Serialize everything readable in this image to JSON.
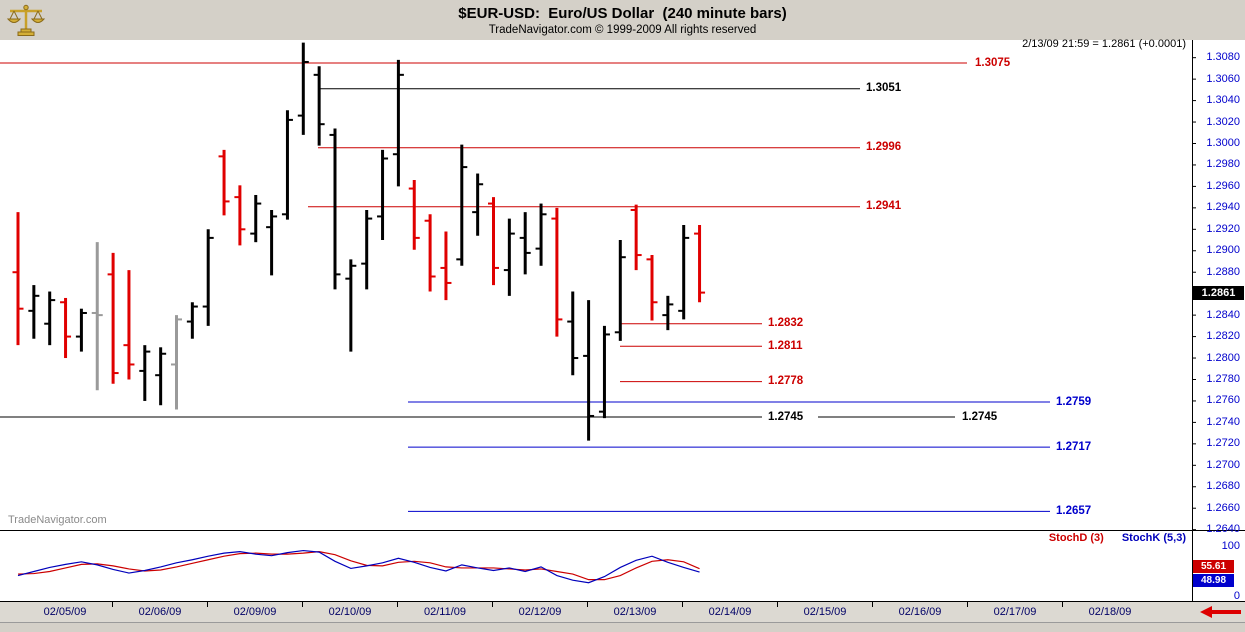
{
  "header": {
    "title": "$EUR-USD:  Euro/US Dollar  (240 minute bars)",
    "subtitle": "TradeNavigator.com © 1999-2009 All rights reserved"
  },
  "quote_info": "2/13/09 21:59 = 1.2861 (+0.0001)",
  "watermark": "TradeNavigator.com",
  "colors": {
    "bar": {
      "black": "#000000",
      "red": "#e00000",
      "gray": "#9a9a9a"
    },
    "level": {
      "red": "#cc0000",
      "blue": "#0000cc",
      "black": "#000000"
    },
    "axis_text": "#0000cc",
    "date_text": "#000066",
    "stoch_d": "#cc0000",
    "stoch_k": "#0000bb",
    "current_bg": "#000000",
    "current_text": "#ffffff",
    "accent_red": "#dd0000"
  },
  "chart_data": {
    "type": "ohlc-bar",
    "title": "$EUR-USD Euro/US Dollar (240 minute bars)",
    "x_axis": {
      "dates": [
        "02/05/09",
        "02/06/09",
        "02/09/09",
        "02/10/09",
        "02/11/09",
        "02/12/09",
        "02/13/09",
        "02/14/09",
        "02/15/09",
        "02/16/09",
        "02/17/09",
        "02/18/09"
      ]
    },
    "y_axis": {
      "ticks": [
        "1.3080",
        "1.3060",
        "1.3040",
        "1.3020",
        "1.3000",
        "1.2980",
        "1.2960",
        "1.2940",
        "1.2920",
        "1.2900",
        "1.2880",
        "1.2840",
        "1.2820",
        "1.2800",
        "1.2780",
        "1.2760",
        "1.2740",
        "1.2720",
        "1.2700",
        "1.2680",
        "1.2660",
        "1.2640"
      ],
      "range": [
        1.264,
        1.308
      ],
      "current_price": "1.2861"
    },
    "bar_format": [
      "open",
      "high",
      "low",
      "close",
      "color"
    ],
    "bars": [
      [
        1.288,
        1.2936,
        1.2812,
        1.2846,
        "red"
      ],
      [
        1.2844,
        1.2868,
        1.2818,
        1.2858,
        "black"
      ],
      [
        1.2832,
        1.2862,
        1.2812,
        1.2854,
        "black"
      ],
      [
        1.2852,
        1.2856,
        1.28,
        1.282,
        "red"
      ],
      [
        1.282,
        1.2846,
        1.2806,
        1.2842,
        "black"
      ],
      [
        1.2842,
        1.2908,
        1.277,
        1.284,
        "gray"
      ],
      [
        1.2878,
        1.2898,
        1.2776,
        1.2786,
        "red"
      ],
      [
        1.2812,
        1.2882,
        1.278,
        1.2794,
        "red"
      ],
      [
        1.2788,
        1.2812,
        1.276,
        1.2806,
        "black"
      ],
      [
        1.2784,
        1.281,
        1.2756,
        1.2804,
        "black"
      ],
      [
        1.2794,
        1.284,
        1.2752,
        1.2836,
        "gray"
      ],
      [
        1.2834,
        1.2852,
        1.2818,
        1.2848,
        "black"
      ],
      [
        1.2848,
        1.292,
        1.283,
        1.2912,
        "black"
      ],
      [
        1.2988,
        1.2994,
        1.2933,
        1.2946,
        "red"
      ],
      [
        1.295,
        1.2961,
        1.2905,
        1.292,
        "red"
      ],
      [
        1.2916,
        1.2952,
        1.2908,
        1.2944,
        "black"
      ],
      [
        1.2922,
        1.2938,
        1.2877,
        1.2932,
        "black"
      ],
      [
        1.2934,
        1.3031,
        1.2929,
        1.3022,
        "black"
      ],
      [
        1.3026,
        1.3094,
        1.3008,
        1.3076,
        "black"
      ],
      [
        1.3064,
        1.3072,
        1.2998,
        1.3018,
        "black"
      ],
      [
        1.3008,
        1.3014,
        1.2864,
        1.2878,
        "black"
      ],
      [
        1.2874,
        1.2892,
        1.2806,
        1.2886,
        "black"
      ],
      [
        1.2888,
        1.2938,
        1.2864,
        1.293,
        "black"
      ],
      [
        1.2932,
        1.2994,
        1.291,
        1.2986,
        "black"
      ],
      [
        1.299,
        1.3078,
        1.296,
        1.3064,
        "black"
      ],
      [
        1.2958,
        1.2966,
        1.2901,
        1.2912,
        "red"
      ],
      [
        1.2928,
        1.2934,
        1.2862,
        1.2876,
        "red"
      ],
      [
        1.2884,
        1.2918,
        1.2854,
        1.287,
        "red"
      ],
      [
        1.2892,
        1.2999,
        1.2886,
        1.2978,
        "black"
      ],
      [
        1.2936,
        1.2972,
        1.2914,
        1.2962,
        "black"
      ],
      [
        1.2944,
        1.295,
        1.2868,
        1.2884,
        "red"
      ],
      [
        1.2882,
        1.293,
        1.2858,
        1.2916,
        "black"
      ],
      [
        1.2912,
        1.2936,
        1.2878,
        1.2898,
        "black"
      ],
      [
        1.2902,
        1.2944,
        1.2886,
        1.2934,
        "black"
      ],
      [
        1.293,
        1.294,
        1.282,
        1.2836,
        "red"
      ],
      [
        1.2834,
        1.2862,
        1.2784,
        1.28,
        "black"
      ],
      [
        1.2802,
        1.2854,
        1.2723,
        1.2746,
        "black"
      ],
      [
        1.275,
        1.283,
        1.2744,
        1.2822,
        "black"
      ],
      [
        1.2824,
        1.291,
        1.2816,
        1.2894,
        "black"
      ],
      [
        1.2938,
        1.2943,
        1.2882,
        1.2896,
        "red"
      ],
      [
        1.2892,
        1.2896,
        1.2835,
        1.2852,
        "red"
      ],
      [
        1.284,
        1.2858,
        1.2826,
        1.285,
        "black"
      ],
      [
        1.2844,
        1.2924,
        1.2836,
        1.2912,
        "black"
      ],
      [
        1.2916,
        1.2924,
        1.2852,
        1.2861,
        "red"
      ]
    ],
    "levels": [
      {
        "label": "1.3075",
        "price": 1.3075,
        "color": "red",
        "segments": [
          [
            0,
            967
          ]
        ],
        "label_positions": [
          975
        ]
      },
      {
        "label": "1.3051",
        "price": 1.3051,
        "color": "black",
        "segments": [
          [
            318,
            860
          ]
        ],
        "label_positions": [
          866
        ]
      },
      {
        "label": "1.2996",
        "price": 1.2996,
        "color": "red",
        "segments": [
          [
            318,
            860
          ]
        ],
        "label_positions": [
          866
        ]
      },
      {
        "label": "1.2941",
        "price": 1.2941,
        "color": "red",
        "segments": [
          [
            308,
            860
          ]
        ],
        "label_positions": [
          866
        ]
      },
      {
        "label": "1.2832",
        "price": 1.2832,
        "color": "red",
        "segments": [
          [
            620,
            762
          ]
        ],
        "label_positions": [
          768
        ]
      },
      {
        "label": "1.2811",
        "price": 1.2811,
        "color": "red",
        "segments": [
          [
            620,
            762
          ]
        ],
        "label_positions": [
          768
        ]
      },
      {
        "label": "1.2778",
        "price": 1.2778,
        "color": "red",
        "segments": [
          [
            620,
            762
          ]
        ],
        "label_positions": [
          768
        ]
      },
      {
        "label": "1.2759",
        "price": 1.2759,
        "color": "blue",
        "segments": [
          [
            408,
            1050
          ]
        ],
        "label_positions": [
          1056
        ]
      },
      {
        "label": "1.2745",
        "price": 1.2745,
        "color": "black",
        "segments": [
          [
            0,
            762
          ],
          [
            818,
            955
          ]
        ],
        "label_positions": [
          768,
          962
        ]
      },
      {
        "label": "1.2717",
        "price": 1.2717,
        "color": "blue",
        "segments": [
          [
            408,
            1050
          ]
        ],
        "label_positions": [
          1056
        ]
      },
      {
        "label": "1.2657",
        "price": 1.2657,
        "color": "blue",
        "segments": [
          [
            408,
            1050
          ]
        ],
        "label_positions": [
          1056
        ]
      }
    ],
    "stoch": {
      "legend_d": "StochD (3)",
      "legend_k": "StochK (5,3)",
      "axis_top": "100",
      "axis_bottom": "0",
      "d_last": "55.61",
      "k_last": "48.98",
      "range": [
        0,
        100
      ],
      "d_values": [
        45,
        46,
        50,
        57,
        64,
        65,
        61,
        55,
        51,
        53,
        59,
        66,
        73,
        80,
        85,
        86,
        84,
        84,
        86,
        89,
        83,
        71,
        62,
        61,
        68,
        70,
        67,
        59,
        57,
        57,
        57,
        55,
        53,
        55,
        50,
        45,
        34,
        34,
        42,
        57,
        70,
        73,
        69,
        55.61
      ],
      "k_values": [
        42,
        50,
        58,
        64,
        69,
        63,
        54,
        47,
        52,
        59,
        67,
        73,
        80,
        86,
        89,
        84,
        81,
        87,
        91,
        88,
        70,
        56,
        61,
        67,
        76,
        68,
        58,
        51,
        63,
        57,
        52,
        57,
        50,
        59,
        42,
        33,
        28,
        40,
        58,
        72,
        80,
        68,
        58,
        48.98
      ]
    }
  }
}
